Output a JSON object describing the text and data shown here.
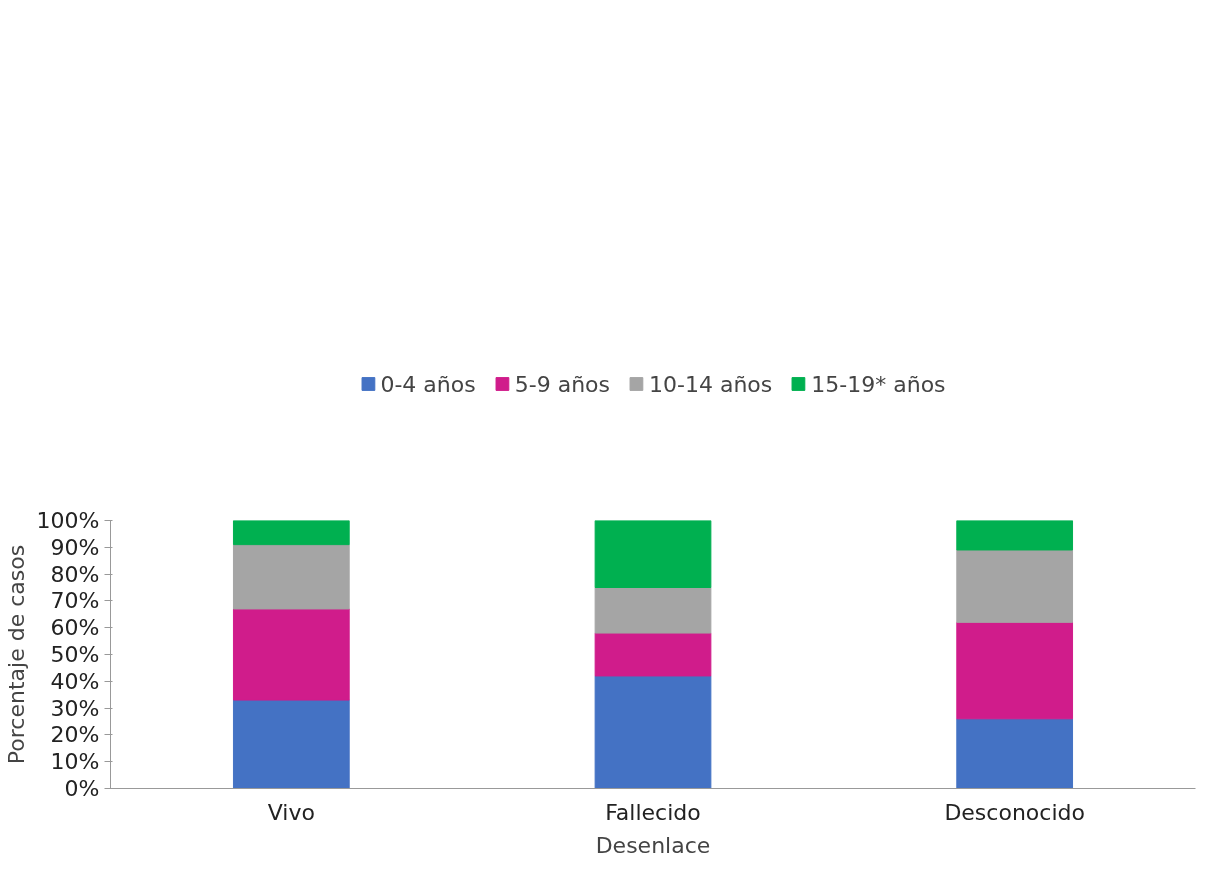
{
  "chart_data": {
    "type": "bar",
    "stacked": true,
    "xlabel": "Desenlace",
    "ylabel": "Porcentaje de casos",
    "categories": [
      "Vivo",
      "Fallecido",
      "Desconocido"
    ],
    "series": [
      {
        "name": "0-4 años",
        "color": "#4472c4",
        "values": [
          33,
          42,
          26
        ]
      },
      {
        "name": "5-9 años",
        "color": "#d01c8b",
        "values": [
          34,
          16,
          36
        ]
      },
      {
        "name": "10-14 años",
        "color": "#a5a5a5",
        "values": [
          24,
          17,
          27
        ]
      },
      {
        "name": "15-19* años",
        "color": "#00b050",
        "values": [
          9,
          25,
          11
        ]
      }
    ],
    "ylim": [
      0,
      100
    ],
    "yticks": [
      {
        "value": 0,
        "label": "0%"
      },
      {
        "value": 10,
        "label": "10%"
      },
      {
        "value": 20,
        "label": "20%"
      },
      {
        "value": 30,
        "label": "30%"
      },
      {
        "value": 40,
        "label": "40%"
      },
      {
        "value": 50,
        "label": "50%"
      },
      {
        "value": 60,
        "label": "60%"
      },
      {
        "value": 70,
        "label": "70%"
      },
      {
        "value": 80,
        "label": "80%"
      },
      {
        "value": 90,
        "label": "90%"
      },
      {
        "value": 100,
        "label": "100%"
      }
    ],
    "grid": false,
    "legend": "top"
  }
}
